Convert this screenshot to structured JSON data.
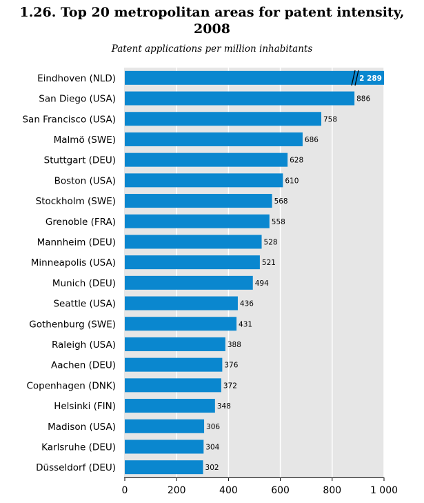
{
  "chart_data": {
    "type": "bar",
    "orientation": "horizontal",
    "title": "1.26.  Top 20 metropolitan areas for patent intensity, 2008",
    "title_lines": [
      "1.26.  Top 20 metropolitan areas for patent intensity,",
      "2008"
    ],
    "subtitle": "Patent applications per million inhabitants",
    "categories": [
      "Eindhoven (NLD)",
      "San Diego (USA)",
      "San Francisco (USA)",
      "Malmö (SWE)",
      "Stuttgart (DEU)",
      "Boston (USA)",
      "Stockholm (SWE)",
      "Grenoble (FRA)",
      "Mannheim (DEU)",
      "Minneapolis (USA)",
      "Munich (DEU)",
      "Seattle (USA)",
      "Gothenburg (SWE)",
      "Raleigh (USA)",
      "Aachen (DEU)",
      "Copenhagen (DNK)",
      "Helsinki (FIN)",
      "Madison (USA)",
      "Karlsruhe (DEU)",
      "Düsseldorf (DEU)"
    ],
    "values": [
      2289,
      886,
      758,
      686,
      628,
      610,
      568,
      558,
      528,
      521,
      494,
      436,
      431,
      388,
      376,
      372,
      348,
      306,
      304,
      302
    ],
    "value_labels": [
      "2 289",
      "886",
      "758",
      "686",
      "628",
      "610",
      "568",
      "558",
      "528",
      "521",
      "494",
      "436",
      "431",
      "388",
      "376",
      "372",
      "348",
      "306",
      "304",
      "302"
    ],
    "xlim": [
      0,
      1000
    ],
    "xticks": [
      0,
      200,
      400,
      600,
      800,
      1000
    ],
    "xtick_labels": [
      "0",
      "200",
      "400",
      "600",
      "800",
      "1 000"
    ],
    "truncated_bar": "Eindhoven (NLD)",
    "grid": true,
    "bar_color": "#0a87cf",
    "background_color": "#e6e6e6",
    "grid_color": "#ffffff"
  }
}
